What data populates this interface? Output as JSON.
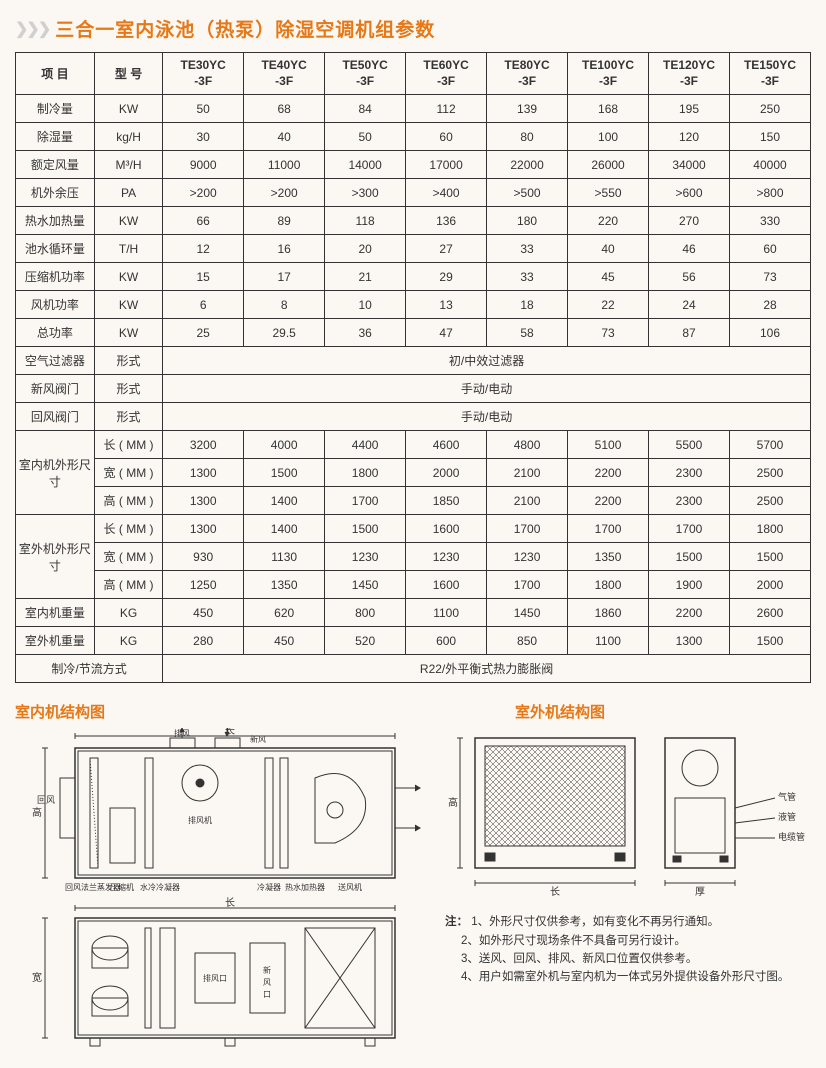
{
  "title": "三合一室内泳池（热泵）除湿空调机组参数",
  "arrows": "❯❯❯",
  "headers": {
    "item": "项 目",
    "model": "型 号",
    "models": [
      "TE30YC\n-3F",
      "TE40YC\n-3F",
      "TE50YC\n-3F",
      "TE60YC\n-3F",
      "TE80YC\n-3F",
      "TE100YC\n-3F",
      "TE120YC\n-3F",
      "TE150YC\n-3F"
    ]
  },
  "rows": [
    {
      "label": "制冷量",
      "unit": "KW",
      "vals": [
        "50",
        "68",
        "84",
        "112",
        "139",
        "168",
        "195",
        "250"
      ]
    },
    {
      "label": "除湿量",
      "unit": "kg/H",
      "vals": [
        "30",
        "40",
        "50",
        "60",
        "80",
        "100",
        "120",
        "150"
      ]
    },
    {
      "label": "额定风量",
      "unit": "M³/H",
      "vals": [
        "9000",
        "11000",
        "14000",
        "17000",
        "22000",
        "26000",
        "34000",
        "40000"
      ]
    },
    {
      "label": "机外余压",
      "unit": "PA",
      "vals": [
        ">200",
        ">200",
        ">300",
        ">400",
        ">500",
        ">550",
        ">600",
        ">800"
      ]
    },
    {
      "label": "热水加热量",
      "unit": "KW",
      "vals": [
        "66",
        "89",
        "118",
        "136",
        "180",
        "220",
        "270",
        "330"
      ]
    },
    {
      "label": "池水循环量",
      "unit": "T/H",
      "vals": [
        "12",
        "16",
        "20",
        "27",
        "33",
        "40",
        "46",
        "60"
      ]
    },
    {
      "label": "压缩机功率",
      "unit": "KW",
      "vals": [
        "15",
        "17",
        "21",
        "29",
        "33",
        "45",
        "56",
        "73"
      ]
    },
    {
      "label": "风机功率",
      "unit": "KW",
      "vals": [
        "6",
        "8",
        "10",
        "13",
        "18",
        "22",
        "24",
        "28"
      ]
    },
    {
      "label": "总功率",
      "unit": "KW",
      "vals": [
        "25",
        "29.5",
        "36",
        "47",
        "58",
        "73",
        "87",
        "106"
      ]
    }
  ],
  "spanRows": [
    {
      "label": "空气过滤器",
      "unit": "形式",
      "text": "初/中效过滤器"
    },
    {
      "label": "新风阀门",
      "unit": "形式",
      "text": "手动/电动"
    },
    {
      "label": "回风阀门",
      "unit": "形式",
      "text": "手动/电动"
    }
  ],
  "indoorDim": {
    "label": "室内机外形尺寸",
    "rows": [
      {
        "unit": "长 ( MM )",
        "vals": [
          "3200",
          "4000",
          "4400",
          "4600",
          "4800",
          "5100",
          "5500",
          "5700"
        ]
      },
      {
        "unit": "宽 ( MM )",
        "vals": [
          "1300",
          "1500",
          "1800",
          "2000",
          "2100",
          "2200",
          "2300",
          "2500"
        ]
      },
      {
        "unit": "高 ( MM )",
        "vals": [
          "1300",
          "1400",
          "1700",
          "1850",
          "2100",
          "2200",
          "2300",
          "2500"
        ]
      }
    ]
  },
  "outdoorDim": {
    "label": "室外机外形尺寸",
    "rows": [
      {
        "unit": "长 ( MM )",
        "vals": [
          "1300",
          "1400",
          "1500",
          "1600",
          "1700",
          "1700",
          "1700",
          "1800"
        ]
      },
      {
        "unit": "宽 ( MM )",
        "vals": [
          "930",
          "1130",
          "1230",
          "1230",
          "1230",
          "1350",
          "1500",
          "1500"
        ]
      },
      {
        "unit": "高 ( MM )",
        "vals": [
          "1250",
          "1350",
          "1450",
          "1600",
          "1700",
          "1800",
          "1900",
          "2000"
        ]
      }
    ]
  },
  "weightRows": [
    {
      "label": "室内机重量",
      "unit": "KG",
      "vals": [
        "450",
        "620",
        "800",
        "1100",
        "1450",
        "1860",
        "2200",
        "2600"
      ]
    },
    {
      "label": "室外机重量",
      "unit": "KG",
      "vals": [
        "280",
        "450",
        "520",
        "600",
        "850",
        "1100",
        "1300",
        "1500"
      ]
    }
  ],
  "lastSpan": {
    "label": "制冷/节流方式",
    "text": "R22/外平衡式热力膨胀阀"
  },
  "diagramTitles": {
    "indoor": "室内机结构图",
    "outdoor": "室外机结构图"
  },
  "diagramLabels": {
    "chang": "长",
    "gao": "高",
    "kuan": "宽",
    "hou": "厚",
    "huifeng": "回风",
    "paifeng": "排风",
    "xinfeng": "新风",
    "paifengji": "排风机",
    "huifengfa": "回风法兰蒸发器",
    "yasuo": "压缩机",
    "shuileng": "水冷冷凝器",
    "lengning": "冷凝器",
    "reshui": "热水加热器",
    "songfeng": "送风机",
    "paifengkou": "排风口",
    "xinfengkou": "新风口",
    "qiguan": "气管",
    "yeguan": "液管",
    "dianlan": "电缆管"
  },
  "notes": {
    "label": "注：",
    "items": [
      "1、外形尺寸仅供参考，如有变化不再另行通知。",
      "2、如外形尺寸现场条件不具备可另行设计。",
      "3、送风、回风、排风、新风口位置仅供参考。",
      "4、用户如需室外机与室内机为一体式另外提供设备外形尺寸图。"
    ]
  },
  "colors": {
    "accent": "#e67817",
    "border": "#333",
    "bg": "#fbf8f3"
  }
}
